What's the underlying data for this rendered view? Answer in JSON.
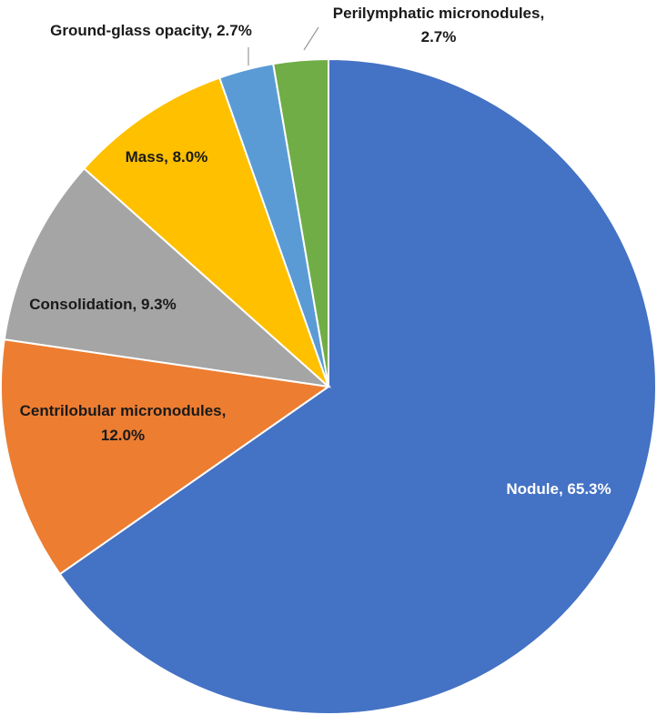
{
  "chart_data": {
    "type": "pie",
    "title": "",
    "slices": [
      {
        "label": "Nodule",
        "label_text": "Nodule,  65.3%",
        "value": 65.3,
        "color": "#4472C4"
      },
      {
        "label": "Centrilobular micronodules",
        "label_lines": [
          "Centrilobular micronodules,",
          "12.0%"
        ],
        "value": 12.0,
        "color": "#ED7D31"
      },
      {
        "label": "Consolidation",
        "label_text": "Consolidation, 9.3%",
        "value": 9.3,
        "color": "#A5A5A5"
      },
      {
        "label": "Mass",
        "label_text": "Mass, 8.0%",
        "value": 8.0,
        "color": "#FFC000"
      },
      {
        "label": "Ground-glass opacity",
        "label_text": "Ground-glass opacity, 2.7%",
        "value": 2.7,
        "color": "#5B9BD5"
      },
      {
        "label": "Perilymphatic micronodules",
        "label_lines": [
          "Perilymphatic micronodules,",
          "2.7%"
        ],
        "value": 2.7,
        "color": "#70AD47"
      }
    ],
    "start_angle": "12 o'clock",
    "direction": "clockwise",
    "legend": "none"
  }
}
